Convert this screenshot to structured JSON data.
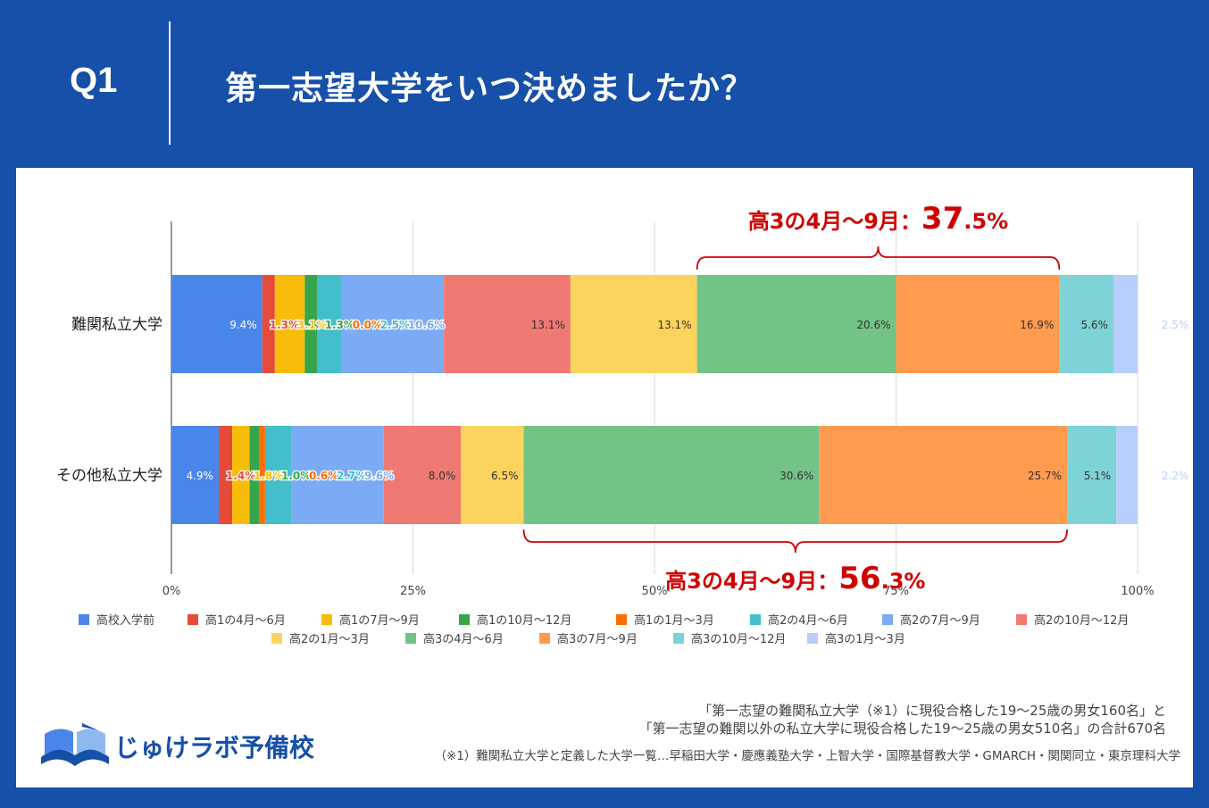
{
  "header": {
    "q_label": "Q1",
    "question": "第一志望大学をいつ決めましたか？"
  },
  "colors": {
    "background": "#1650a8",
    "series": [
      "#4a86ea",
      "#e64a3a",
      "#f8bd0a",
      "#37a54b",
      "#ff6d00",
      "#44bfca",
      "#7babf5",
      "#ef7a73",
      "#fcd35c",
      "#73c387",
      "#ff9b4f",
      "#7dd3d6",
      "#b7cdfa"
    ],
    "highlight": "#d00000"
  },
  "chart_data": {
    "type": "bar",
    "orientation": "horizontal",
    "stacked": true,
    "normalized": true,
    "categories": [
      "難関私立大学",
      "その他私立大学"
    ],
    "series": [
      {
        "name": "高校入学前",
        "values": [
          9.4,
          4.9
        ]
      },
      {
        "name": "高1の4月～6月",
        "values": [
          1.3,
          1.4
        ]
      },
      {
        "name": "高1の7月～9月",
        "values": [
          3.1,
          1.8
        ]
      },
      {
        "name": "高1の10月～12月",
        "values": [
          1.3,
          1.0
        ]
      },
      {
        "name": "高1の1月～3月",
        "values": [
          0.0,
          0.6
        ]
      },
      {
        "name": "高2の4月～6月",
        "values": [
          2.5,
          2.7
        ]
      },
      {
        "name": "高2の7月～9月",
        "values": [
          10.6,
          9.6
        ]
      },
      {
        "name": "高2の10月～12月",
        "values": [
          13.1,
          8.0
        ]
      },
      {
        "name": "高2の1月～3月",
        "values": [
          13.1,
          6.5
        ]
      },
      {
        "name": "高3の4月～6月",
        "values": [
          20.6,
          30.6
        ]
      },
      {
        "name": "高3の7月～9月",
        "values": [
          16.9,
          25.7
        ]
      },
      {
        "name": "高3の10月～12月",
        "values": [
          5.6,
          5.1
        ]
      },
      {
        "name": "高3の1月～3月",
        "values": [
          2.5,
          2.2
        ]
      }
    ],
    "xlim": [
      0,
      100
    ],
    "x_ticks": [
      "0%",
      "25%",
      "50%",
      "75%",
      "100%"
    ],
    "grid": true,
    "legend_position": "bottom",
    "annotations": [
      {
        "category_index": 0,
        "series_from": 9,
        "series_to": 10,
        "position": "above",
        "label_main": "高3の4月～9月：",
        "label_int": "37",
        "label_dec": ".5%"
      },
      {
        "category_index": 1,
        "series_from": 9,
        "series_to": 10,
        "position": "below",
        "label_main": "高3の4月～9月：",
        "label_int": "56",
        "label_dec": ".3%"
      }
    ]
  },
  "footer": {
    "source_line1": "「第一志望の難関私立大学（※1）に現役合格した19～25歳の男女160名」と",
    "source_line2": "「第一志望の難関以外の私立大学に現役合格した19～25歳の男女510名」の合計670名",
    "note": "（※1）難関私立大学と定義した大学一覧…早稲田大学・慶應義塾大学・上智大学・国際基督教大学・GMARCH・関関同立・東京理科大学",
    "logo_text": "じゅけラボ予備校"
  }
}
